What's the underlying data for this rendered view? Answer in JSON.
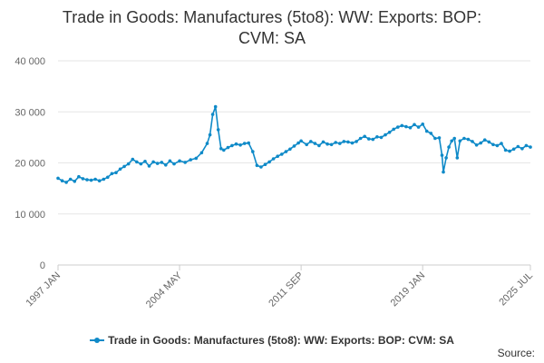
{
  "title_lines": [
    "Trade in Goods: Manufactures (5to8): WW: Exports: BOP:",
    "CVM: SA"
  ],
  "source_label": "Source:",
  "colors": {
    "series": "#0f8ac8",
    "grid": "#e6e6e6",
    "axis": "#cccccc",
    "text": "#666666"
  },
  "chart_data": {
    "type": "line",
    "title": "Trade in Goods: Manufactures (5to8): WW: Exports: BOP: CVM: SA",
    "ylim": [
      0,
      40000
    ],
    "yticks": [
      {
        "value": 0,
        "label": "0"
      },
      {
        "value": 10000,
        "label": "10 000"
      },
      {
        "value": 20000,
        "label": "20 000"
      },
      {
        "value": 30000,
        "label": "30 000"
      },
      {
        "value": 40000,
        "label": "40 000"
      }
    ],
    "xticks": [
      {
        "label": "1997 JAN",
        "date": "1997-01"
      },
      {
        "label": "2004 MAY",
        "date": "2004-05"
      },
      {
        "label": "2011 SEP",
        "date": "2011-09"
      },
      {
        "label": "2019 JAN",
        "date": "2019-01"
      },
      {
        "label": "2025 JUL",
        "date": "2025-07"
      }
    ],
    "grid": true,
    "legend_position": "bottom",
    "series": [
      {
        "name": "Trade in Goods: Manufactures (5to8): WW: Exports: BOP: CVM: SA",
        "points": [
          [
            "1997-01",
            17000
          ],
          [
            "1997-04",
            16500
          ],
          [
            "1997-07",
            16200
          ],
          [
            "1997-10",
            16800
          ],
          [
            "1998-01",
            16400
          ],
          [
            "1998-04",
            17300
          ],
          [
            "1998-07",
            16900
          ],
          [
            "1998-10",
            16700
          ],
          [
            "1999-01",
            16600
          ],
          [
            "1999-04",
            16800
          ],
          [
            "1999-07",
            16500
          ],
          [
            "1999-10",
            16800
          ],
          [
            "2000-01",
            17200
          ],
          [
            "2000-04",
            17900
          ],
          [
            "2000-07",
            18100
          ],
          [
            "2000-10",
            18800
          ],
          [
            "2001-01",
            19300
          ],
          [
            "2001-04",
            19800
          ],
          [
            "2001-07",
            20700
          ],
          [
            "2001-10",
            20200
          ],
          [
            "2002-01",
            19800
          ],
          [
            "2002-04",
            20300
          ],
          [
            "2002-07",
            19400
          ],
          [
            "2002-10",
            20200
          ],
          [
            "2003-01",
            19900
          ],
          [
            "2003-04",
            20100
          ],
          [
            "2003-07",
            19600
          ],
          [
            "2003-10",
            20400
          ],
          [
            "2004-01",
            19800
          ],
          [
            "2004-05",
            20400
          ],
          [
            "2004-09",
            20100
          ],
          [
            "2005-01",
            20600
          ],
          [
            "2005-05",
            20900
          ],
          [
            "2005-09",
            22000
          ],
          [
            "2006-01",
            23800
          ],
          [
            "2006-03",
            25500
          ],
          [
            "2006-05",
            29500
          ],
          [
            "2006-07",
            31000
          ],
          [
            "2006-09",
            26500
          ],
          [
            "2006-11",
            22800
          ],
          [
            "2007-01",
            22500
          ],
          [
            "2007-04",
            23000
          ],
          [
            "2007-07",
            23400
          ],
          [
            "2007-10",
            23700
          ],
          [
            "2008-01",
            23500
          ],
          [
            "2008-04",
            23800
          ],
          [
            "2008-07",
            23900
          ],
          [
            "2008-10",
            22200
          ],
          [
            "2009-01",
            19500
          ],
          [
            "2009-04",
            19200
          ],
          [
            "2009-07",
            19700
          ],
          [
            "2009-10",
            20200
          ],
          [
            "2010-01",
            20800
          ],
          [
            "2010-04",
            21300
          ],
          [
            "2010-07",
            21700
          ],
          [
            "2010-10",
            22200
          ],
          [
            "2011-01",
            22700
          ],
          [
            "2011-04",
            23300
          ],
          [
            "2011-07",
            23900
          ],
          [
            "2011-09",
            24300
          ],
          [
            "2012-01",
            23600
          ],
          [
            "2012-04",
            24200
          ],
          [
            "2012-07",
            23800
          ],
          [
            "2012-10",
            23400
          ],
          [
            "2013-01",
            24100
          ],
          [
            "2013-04",
            23700
          ],
          [
            "2013-07",
            23600
          ],
          [
            "2013-10",
            24000
          ],
          [
            "2014-01",
            23800
          ],
          [
            "2014-04",
            24200
          ],
          [
            "2014-07",
            24100
          ],
          [
            "2014-10",
            23900
          ],
          [
            "2015-01",
            24200
          ],
          [
            "2015-04",
            24800
          ],
          [
            "2015-07",
            25200
          ],
          [
            "2015-10",
            24700
          ],
          [
            "2016-01",
            24600
          ],
          [
            "2016-04",
            25100
          ],
          [
            "2016-07",
            25000
          ],
          [
            "2016-10",
            25500
          ],
          [
            "2017-01",
            26000
          ],
          [
            "2017-04",
            26600
          ],
          [
            "2017-07",
            27000
          ],
          [
            "2017-10",
            27300
          ],
          [
            "2018-01",
            27100
          ],
          [
            "2018-04",
            26900
          ],
          [
            "2018-07",
            27500
          ],
          [
            "2018-10",
            27000
          ],
          [
            "2019-01",
            27600
          ],
          [
            "2019-04",
            26200
          ],
          [
            "2019-07",
            25800
          ],
          [
            "2019-10",
            24800
          ],
          [
            "2020-01",
            24900
          ],
          [
            "2020-03",
            21500
          ],
          [
            "2020-04",
            18200
          ],
          [
            "2020-06",
            21000
          ],
          [
            "2020-08",
            23100
          ],
          [
            "2020-10",
            24300
          ],
          [
            "2020-12",
            24800
          ],
          [
            "2021-02",
            21000
          ],
          [
            "2021-04",
            24300
          ],
          [
            "2021-07",
            24800
          ],
          [
            "2021-10",
            24600
          ],
          [
            "2022-01",
            24200
          ],
          [
            "2022-04",
            23500
          ],
          [
            "2022-07",
            23900
          ],
          [
            "2022-10",
            24500
          ],
          [
            "2023-01",
            24100
          ],
          [
            "2023-04",
            23600
          ],
          [
            "2023-07",
            23400
          ],
          [
            "2023-10",
            23800
          ],
          [
            "2024-01",
            22500
          ],
          [
            "2024-04",
            22300
          ],
          [
            "2024-07",
            22700
          ],
          [
            "2024-10",
            23200
          ],
          [
            "2025-01",
            22800
          ],
          [
            "2025-04",
            23400
          ],
          [
            "2025-07",
            23100
          ]
        ]
      }
    ]
  }
}
